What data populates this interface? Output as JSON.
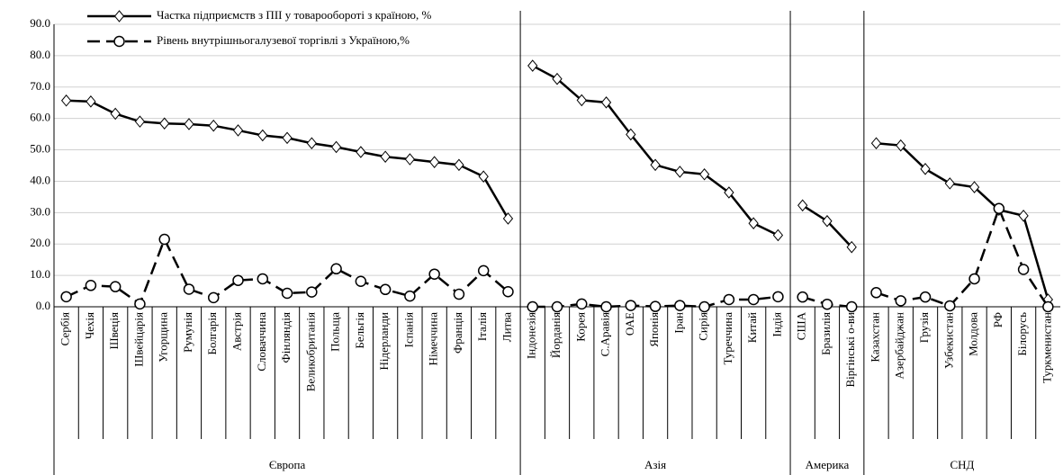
{
  "chart_data": {
    "type": "line",
    "groups": [
      {
        "label": "Європа",
        "categories": [
          "Сербія",
          "Чехія",
          "Швеція",
          "Швейцарія",
          "Угорщина",
          "Румунія",
          "Болгарія",
          "Австрія",
          "Словаччина",
          "Фінляндія",
          "Великобританія",
          "Польща",
          "Бельгія",
          "Нідерланди",
          "Іспанія",
          "Німеччина",
          "Франція",
          "Італія",
          "Литва"
        ]
      },
      {
        "label": "Азія",
        "categories": [
          "Індонезія",
          "Йорданія",
          "Корея",
          "С.Аравія",
          "ОАЕ",
          "Японія",
          "Іран",
          "Сирія",
          "Туреччина",
          "Китай",
          "Індія"
        ]
      },
      {
        "label": "Америка",
        "categories": [
          "США",
          "Бразилія",
          "Віргінські о-ви"
        ]
      },
      {
        "label": "СНД",
        "categories": [
          "Казахстан",
          "Азербайджан",
          "Грузія",
          "Узбекистан",
          "Молдова",
          "РФ",
          "Білорусь",
          "Туркменистан"
        ]
      }
    ],
    "series": [
      {
        "name": "Частка підприємств з ПІІ у товарообороті з країною, %",
        "color": "#000000",
        "marker": "diamond",
        "dashed": false,
        "values": [
          65.7,
          65.4,
          61.5,
          59,
          58.4,
          58.2,
          57.7,
          56.2,
          54.6,
          53.8,
          52.1,
          50.9,
          49.3,
          47.8,
          47,
          46.1,
          45.2,
          41.5,
          28.1,
          76.8,
          72.6,
          65.8,
          65.1,
          54.9,
          45.2,
          43,
          42.2,
          36.4,
          26.6,
          22.8,
          32.3,
          27.3,
          19,
          52.1,
          51.4,
          43.9,
          39.3,
          38.1,
          30.9,
          29,
          2.3
        ]
      },
      {
        "name": "Рівень внутрішньогалузевої торгівлі з Україною,%",
        "color": "#000000",
        "marker": "circle",
        "dashed": true,
        "values": [
          3.2,
          6.8,
          6.4,
          0.9,
          21.5,
          5.6,
          2.9,
          8.4,
          8.9,
          4.3,
          4.7,
          12.1,
          8.1,
          5.5,
          3.4,
          10.4,
          4,
          11.5,
          4.8,
          0,
          0,
          0.9,
          0,
          0.4,
          0.1,
          0.4,
          0,
          2.3,
          2.3,
          3.2,
          3.1,
          0.8,
          0,
          4.5,
          1.9,
          3.1,
          0.3,
          8.9,
          31.3,
          11.9,
          0
        ]
      }
    ],
    "ylim": [
      0,
      90
    ],
    "yticks": [
      {
        "value": 0,
        "label": "0.0"
      },
      {
        "value": 10,
        "label": "10.0"
      },
      {
        "value": 20,
        "label": "20.0"
      },
      {
        "value": 30,
        "label": "30.0"
      },
      {
        "value": 40,
        "label": "40.0"
      },
      {
        "value": 50,
        "label": "50.0"
      },
      {
        "value": 60,
        "label": "60.0"
      },
      {
        "value": 70,
        "label": "70.0"
      },
      {
        "value": 80,
        "label": "80.0"
      },
      {
        "value": 90,
        "label": "90.0"
      }
    ],
    "grid": true,
    "legend": "top-left"
  }
}
